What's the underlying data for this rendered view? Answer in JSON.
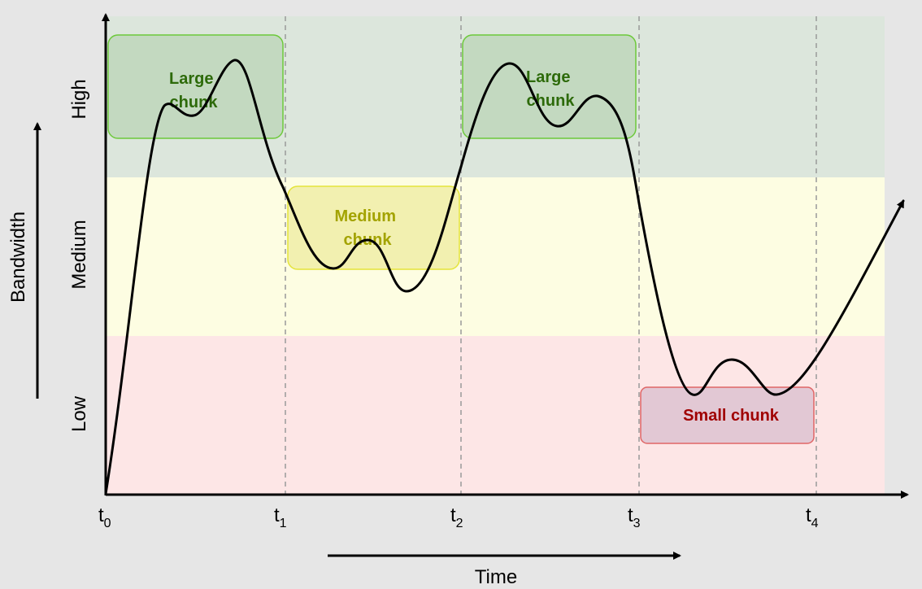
{
  "bands": {
    "high": {
      "label": "High",
      "fill": "#dce6dc"
    },
    "medium": {
      "label": "Medium",
      "fill": "#fdfde2"
    },
    "low": {
      "label": "Low",
      "fill": "#fde6e6"
    }
  },
  "axes": {
    "y_title": "Bandwidth",
    "x_title": "Time",
    "ticks": [
      {
        "base": "t",
        "sub": "0"
      },
      {
        "base": "t",
        "sub": "1"
      },
      {
        "base": "t",
        "sub": "2"
      },
      {
        "base": "t",
        "sub": "3"
      },
      {
        "base": "t",
        "sub": "4"
      }
    ]
  },
  "chunks": {
    "large_1": {
      "line1": "Large",
      "line2": "chunk"
    },
    "medium": {
      "line1": "Medium",
      "line2": "chunk"
    },
    "large_2": {
      "line1": "Large",
      "line2": "chunk"
    },
    "small": {
      "line1": "Small chunk"
    }
  },
  "colors": {
    "large_fill": "#c3d9c0",
    "large_stroke": "#6dc93b",
    "large_text": "#2d6a0a",
    "medium_fill": "#f2f0b0",
    "medium_stroke": "#e4e43a",
    "medium_text": "#a3a300",
    "small_fill": "#e2c8d4",
    "small_stroke": "#e06666",
    "small_text": "#a00000"
  }
}
